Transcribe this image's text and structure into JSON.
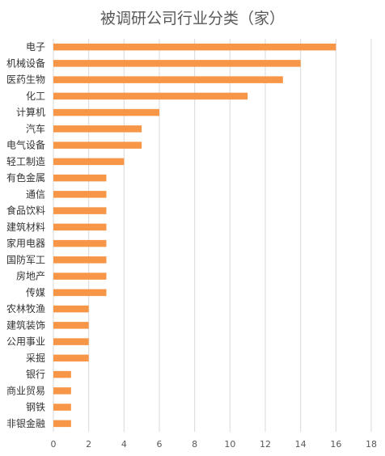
{
  "chart_data": {
    "type": "bar",
    "orientation": "horizontal",
    "title": "被调研公司行业分类（家）",
    "categories": [
      "电子",
      "机械设备",
      "医药生物",
      "化工",
      "计算机",
      "汽车",
      "电气设备",
      "轻工制造",
      "有色金属",
      "通信",
      "食品饮料",
      "建筑材料",
      "家用电器",
      "国防军工",
      "房地产",
      "传媒",
      "农林牧渔",
      "建筑装饰",
      "公用事业",
      "采掘",
      "银行",
      "商业贸易",
      "钢铁",
      "非银金融"
    ],
    "values": [
      16,
      14,
      13,
      11,
      6,
      5,
      5,
      4,
      3,
      3,
      3,
      3,
      3,
      3,
      3,
      3,
      2,
      2,
      2,
      2,
      1,
      1,
      1,
      1
    ],
    "xticks": [
      0,
      2,
      4,
      6,
      8,
      10,
      12,
      14,
      16,
      18
    ],
    "xlim": [
      0,
      18
    ],
    "grid": true,
    "bar_color": "#F79646",
    "grid_color": "#D9D9D9"
  }
}
